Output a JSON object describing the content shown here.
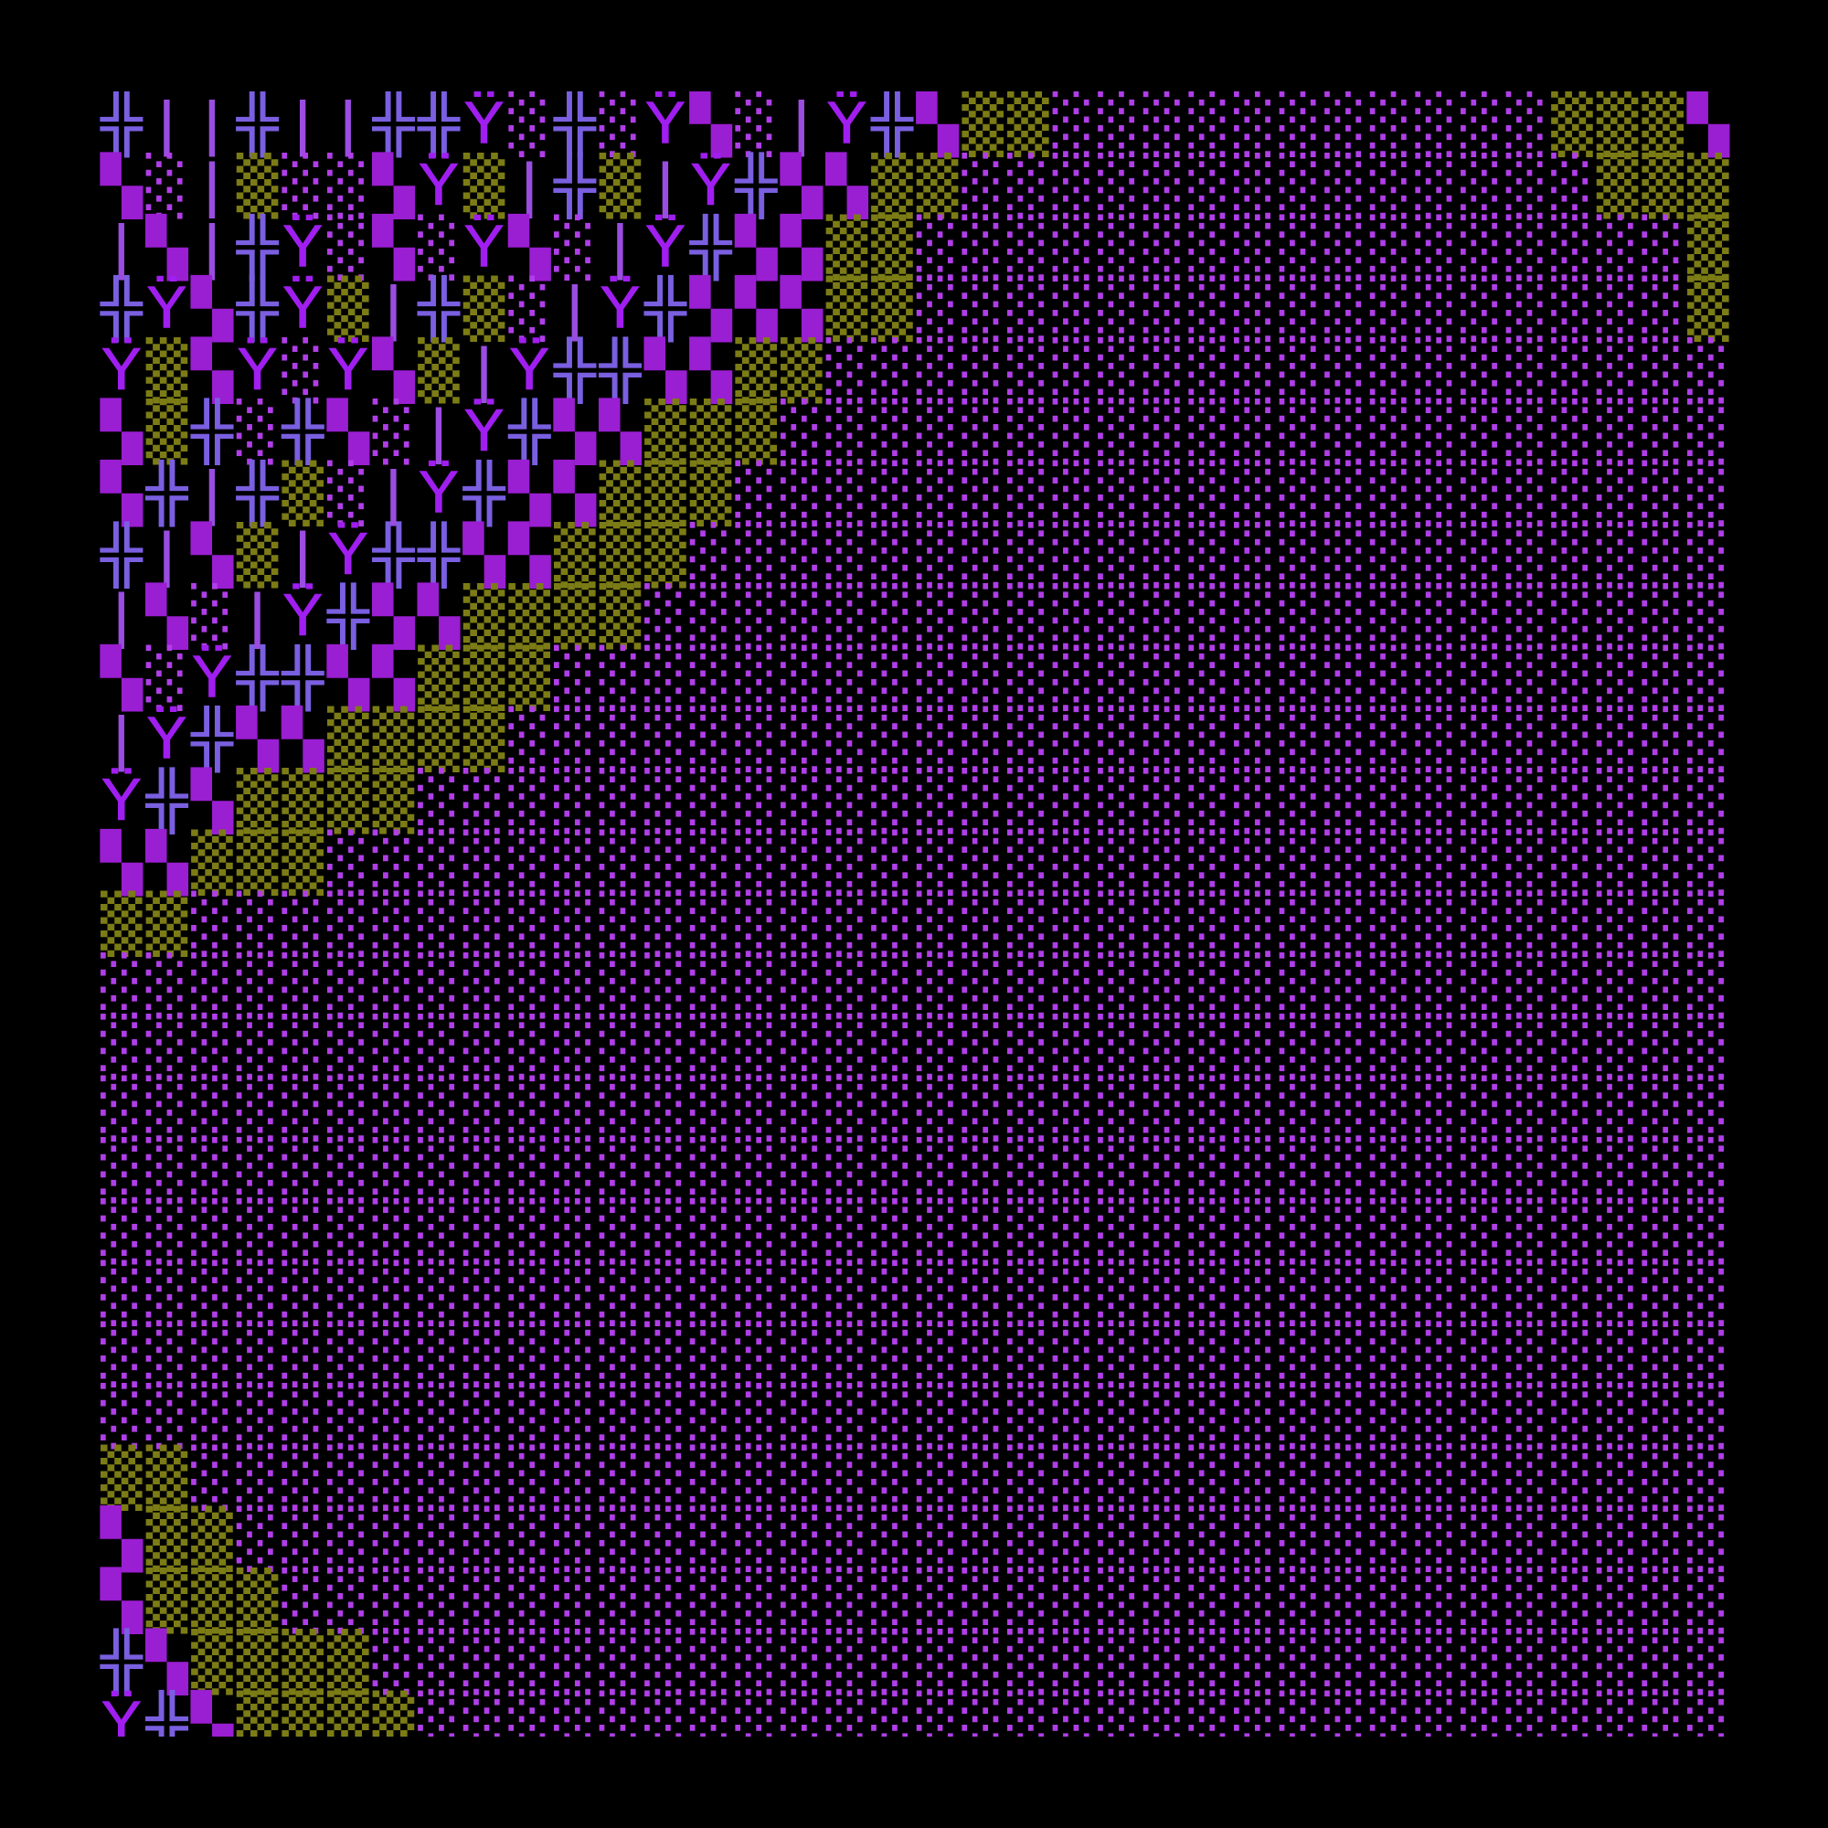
{
  "grid": {
    "colors": {
      "╬": "#7a5fe0",
      "|": "#9a4de0",
      "Ÿ": "#a01ef0",
      "▚": "#9a1ed2",
      "░": "#b03ee8",
      "▒": "#7c7c16"
    },
    "rows": [
      "╬||╬||╬╬Ÿ░╬░Ÿ▚░|Ÿ╬▚▒▒░░░░░░░░░░░▒▒▒▚",
      "▚░|▒░░▚Ÿ▒|╬▒|Ÿ╬▚▚▒▒░░░░░░░░░░░░░░▒▒▒",
      "|▚|╬Ÿ░▚░Ÿ▚░|Ÿ╬▚▚▒▒░░░░░░░░░░░░░░░░░▒",
      "╬Ÿ▚╬Ÿ▒|╬▒░|Ÿ╬▚▚▚▒▒░░░░░░░░░░░░░░░░░▒",
      "Ÿ▒▚Ÿ░Ÿ▚▒|Ÿ╬╬▚▚▒▒░░░░░░░░░░░░░░░░░░░░",
      "▚▒╬░╬▚░|Ÿ╬▚▚▒▒▒░░░░░░░░░░░░░░░░░░░░░",
      "▚╬|╬▒░|Ÿ╬▚▚▒▒▒░░░░░░░░░░░░░░░░░░░░░░",
      "╬|▚▒|Ÿ╬╬▚▚▒▒▒░░░░░░░░░░░░░░░░░░░░░░░",
      "|▚░|Ÿ╬▚▚▒▒▒▒░░░░░░░░░░░░░░░░░░░░░░░░",
      "▚░Ÿ╬╬▚▚▒▒▒░░░░░░░░░░░░░░░░░░░░░░░░░░",
      "|Ÿ╬▚▚▒▒▒▒░░░░░░░░░░░░░░░░░░░░░░░░░░░",
      "Ÿ╬▚▒▒▒▒░░░░░░░░░░░░░░░░░░░░░░░░░░░░░",
      "▚▚▒▒▒░░░░░░░░░░░░░░░░░░░░░░░░░░░░░░░",
      "▒▒░░░░░░░░░░░░░░░░░░░░░░░░░░░░░░░░░░",
      "░░░░░░░░░░░░░░░░░░░░░░░░░░░░░░░░░░░░",
      "░░░░░░░░░░░░░░░░░░░░░░░░░░░░░░░░░░░░",
      "░░░░░░░░░░░░░░░░░░░░░░░░░░░░░░░░░░░░",
      "░░░░░░░░░░░░░░░░░░░░░░░░░░░░░░░░░░░░",
      "░░░░░░░░░░░░░░░░░░░░░░░░░░░░░░░░░░░░",
      "░░░░░░░░░░░░░░░░░░░░░░░░░░░░░░░░░░░░",
      "░░░░░░░░░░░░░░░░░░░░░░░░░░░░░░░░░░░░",
      "░░░░░░░░░░░░░░░░░░░░░░░░░░░░░░░░░░░░",
      "▒▒░░░░░░░░░░░░░░░░░░░░░░░░░░░░░░░░░░",
      "▚▒▒░░░░░░░░░░░░░░░░░░░░░░░░░░░░░░░░░",
      "▚▒▒▒░░░░░░░░░░░░░░░░░░░░░░░░░░░░░░░░",
      "╬▚▒▒▒▒░░░░░░░░░░░░░░░░░░░░░░░░░░░░░░",
      "Ÿ╬▚▒▒▒▒░░░░░░░░░░░░░░░░░░░░░░░░░░░░░"
    ]
  }
}
